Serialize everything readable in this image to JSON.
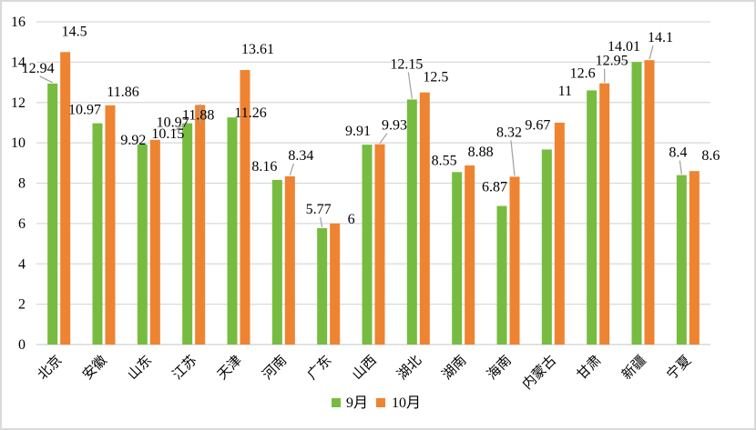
{
  "chart_data": {
    "type": "bar",
    "title": "",
    "xlabel": "",
    "ylabel": "",
    "ylim": [
      0,
      16
    ],
    "yticks": [
      0,
      2,
      4,
      6,
      8,
      10,
      12,
      14,
      16
    ],
    "grid": true,
    "legend_position": "bottom",
    "categories": [
      "北京",
      "安徽",
      "山东",
      "江苏",
      "天津",
      "河南",
      "广东",
      "山西",
      "湖北",
      "湖南",
      "海南",
      "内蒙古",
      "甘肃",
      "新疆",
      "宁夏"
    ],
    "series": [
      {
        "name": "9月",
        "color": "#77bc41",
        "values": [
          12.94,
          10.97,
          9.92,
          10.97,
          11.26,
          8.16,
          5.77,
          9.91,
          12.15,
          8.55,
          6.87,
          9.67,
          12.6,
          14.01,
          8.4
        ],
        "labels": [
          "12.94",
          "10.97",
          "9.92",
          "10.97",
          "11.26",
          "8.16",
          "5.77",
          "9.91",
          "12.15",
          "8.55",
          "6.87",
          "9.67",
          "12.6",
          "14.01",
          "8.4"
        ]
      },
      {
        "name": "10月",
        "color": "#ee8331",
        "values": [
          14.5,
          11.86,
          10.15,
          11.88,
          13.61,
          8.34,
          6,
          9.93,
          12.5,
          8.88,
          8.32,
          11,
          12.95,
          14.1,
          8.6
        ],
        "labels": [
          "14.5",
          "11.86",
          "10.15",
          "11.88",
          "13.61",
          "8.34",
          "6",
          "9.93",
          "12.5",
          "8.88",
          "8.32",
          "11",
          "12.95",
          "14.1",
          "8.6"
        ]
      }
    ]
  }
}
